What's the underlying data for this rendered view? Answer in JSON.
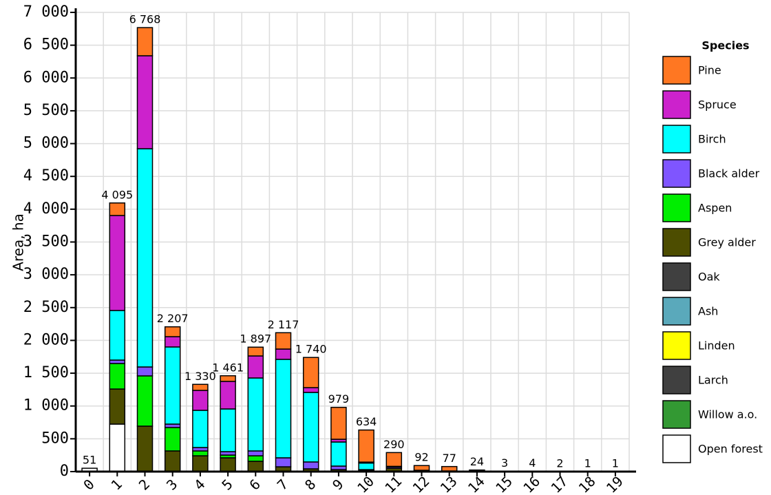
{
  "chart_data": {
    "type": "stacked_bar",
    "y_label": "Area, ha",
    "legend_title": "Species",
    "categories": [
      "0",
      "1",
      "2",
      "3",
      "4",
      "5",
      "6",
      "7",
      "8",
      "9",
      "10",
      "11",
      "12",
      "13",
      "14",
      "15",
      "16",
      "17",
      "18",
      "19"
    ],
    "ylim": [
      0,
      7000
    ],
    "yticks": [
      0,
      500,
      {
        "value": 1000,
        "label": "1 000"
      },
      {
        "value": 1500,
        "label": "1 500"
      },
      {
        "value": 2000,
        "label": "2 000"
      },
      {
        "value": 2500,
        "label": "2 500"
      },
      {
        "value": 3000,
        "label": "3 000"
      },
      {
        "value": 3500,
        "label": "3 500"
      },
      {
        "value": 4000,
        "label": "4 000"
      },
      {
        "value": 4500,
        "label": "4 500"
      },
      {
        "value": 5000,
        "label": "5 000"
      },
      {
        "value": 5500,
        "label": "5 500"
      },
      {
        "value": 6000,
        "label": "6 000"
      },
      {
        "value": 6500,
        "label": "6 500"
      },
      {
        "value": 7000,
        "label": "7 000"
      }
    ],
    "grid": true,
    "legend": "right",
    "totals": [
      51,
      4095,
      6768,
      2207,
      1330,
      1461,
      1897,
      2117,
      1740,
      979,
      634,
      290,
      92,
      77,
      24,
      3,
      4,
      2,
      1,
      1
    ],
    "value_labels": [
      "51",
      "4 095",
      "6 768",
      "2 207",
      "1 330",
      "1 461",
      "1 897",
      "2 117",
      "1 740",
      "979",
      "634",
      "290",
      "92",
      "77",
      "24",
      "3",
      "4",
      "2",
      "1",
      "1"
    ],
    "series": [
      {
        "name": "Open forest",
        "color": "#ffffff",
        "values": [
          51,
          724,
          0,
          0,
          0,
          0,
          0,
          0,
          0,
          0,
          0,
          0,
          0,
          0,
          0,
          0,
          0,
          0,
          0,
          0
        ]
      },
      {
        "name": "Willow a.o.",
        "color": "#339933",
        "values": [
          0,
          0,
          0,
          0,
          0,
          0,
          0,
          0,
          0,
          0,
          0,
          0,
          0,
          0,
          0,
          0,
          0,
          0,
          0,
          0
        ]
      },
      {
        "name": "Larch",
        "color": "#404040",
        "values": [
          0,
          0,
          0,
          0,
          0,
          0,
          0,
          0,
          0,
          0,
          0,
          0,
          0,
          0,
          0,
          0,
          0,
          0,
          0,
          0
        ]
      },
      {
        "name": "Linden",
        "color": "#ffff00",
        "values": [
          0,
          0,
          0,
          0,
          0,
          0,
          0,
          0,
          0,
          0,
          0,
          0,
          0,
          0,
          0,
          0,
          0,
          0,
          0,
          0
        ]
      },
      {
        "name": "Ash",
        "color": "#5aa9bb",
        "values": [
          0,
          0,
          0,
          0,
          0,
          0,
          0,
          0,
          0,
          0,
          0,
          0,
          0,
          0,
          0,
          0,
          0,
          0,
          0,
          0
        ]
      },
      {
        "name": "Oak",
        "color": "#404040",
        "values": [
          0,
          0,
          0,
          0,
          0,
          0,
          0,
          0,
          0,
          0,
          0,
          0,
          0,
          0,
          0,
          0,
          0,
          0,
          0,
          0
        ]
      },
      {
        "name": "Grey alder",
        "color": "#4d4d00",
        "values": [
          0,
          535,
          693,
          315,
          241,
          210,
          157,
          73,
          42,
          30,
          20,
          50,
          20,
          10,
          24,
          3,
          4,
          2,
          1,
          1
        ]
      },
      {
        "name": "Aspen",
        "color": "#00ee00",
        "values": [
          0,
          389,
          766,
          357,
          74,
          42,
          84,
          0,
          0,
          0,
          0,
          0,
          0,
          0,
          0,
          0,
          0,
          0,
          0,
          0
        ]
      },
      {
        "name": "Black alder",
        "color": "#7f55ff",
        "values": [
          0,
          52,
          136,
          52,
          52,
          52,
          74,
          137,
          105,
          54,
          10,
          20,
          0,
          0,
          0,
          0,
          0,
          0,
          0,
          0
        ]
      },
      {
        "name": "Birch",
        "color": "#00ffff",
        "values": [
          0,
          756,
          3327,
          1176,
          567,
          651,
          1112,
          1501,
          1060,
          367,
          100,
          10,
          0,
          0,
          0,
          0,
          0,
          0,
          0,
          0
        ]
      },
      {
        "name": "Spruce",
        "color": "#cc22cc",
        "values": [
          0,
          1448,
          1417,
          157,
          304,
          420,
          336,
          157,
          73,
          42,
          15,
          0,
          0,
          0,
          0,
          0,
          0,
          0,
          0,
          0
        ]
      },
      {
        "name": "Pine",
        "color": "#ff7722",
        "values": [
          0,
          191,
          429,
          150,
          92,
          86,
          134,
          249,
          460,
          486,
          489,
          210,
          72,
          67,
          0,
          0,
          0,
          0,
          0,
          0
        ]
      }
    ]
  }
}
